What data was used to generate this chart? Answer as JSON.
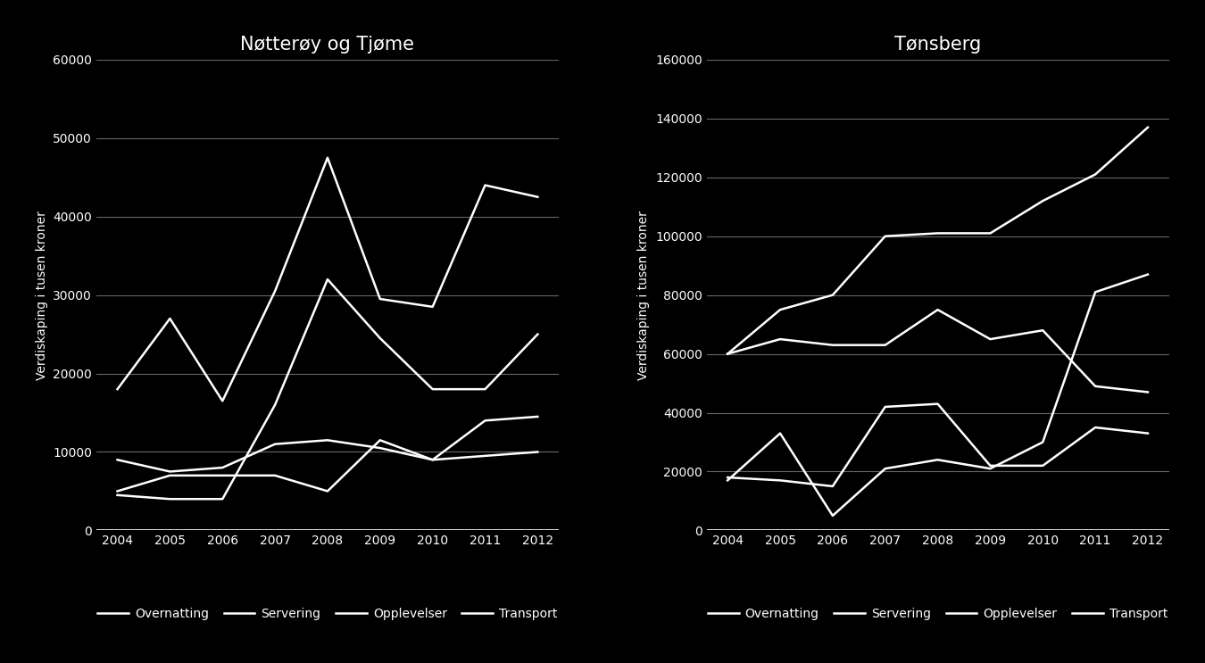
{
  "years": [
    2004,
    2005,
    2006,
    2007,
    2008,
    2009,
    2010,
    2011,
    2012
  ],
  "left": {
    "title": "Nøtterøy og Tjøme",
    "ylim": [
      0,
      60000
    ],
    "yticks": [
      0,
      10000,
      20000,
      30000,
      40000,
      50000,
      60000
    ],
    "series": {
      "Overnatting": [
        18000,
        27000,
        16500,
        30500,
        47500,
        29500,
        28500,
        44000,
        42500
      ],
      "Servering": [
        4500,
        4000,
        4000,
        16000,
        32000,
        24500,
        18000,
        18000,
        25000
      ],
      "Opplevelser": [
        5000,
        7000,
        7000,
        7000,
        5000,
        11500,
        9000,
        9500,
        10000
      ],
      "Transport": [
        9000,
        7500,
        8000,
        11000,
        11500,
        10500,
        9000,
        14000,
        14500
      ]
    }
  },
  "right": {
    "title": "Tønsberg",
    "ylim": [
      0,
      160000
    ],
    "yticks": [
      0,
      20000,
      40000,
      60000,
      80000,
      100000,
      120000,
      140000,
      160000
    ],
    "series": {
      "Overnatting": [
        60000,
        75000,
        80000,
        100000,
        101000,
        101000,
        112000,
        121000,
        137000
      ],
      "Servering": [
        60000,
        65000,
        63000,
        63000,
        75000,
        65000,
        68000,
        49000,
        47000
      ],
      "Opplevelser": [
        18000,
        17000,
        15000,
        42000,
        43000,
        22000,
        22000,
        35000,
        33000
      ],
      "Transport": [
        17000,
        33000,
        5000,
        21000,
        24000,
        21000,
        30000,
        81000,
        87000
      ]
    }
  },
  "legend_labels": [
    "Overnatting",
    "Servering",
    "Opplevelser",
    "Transport"
  ],
  "line_color": "#ffffff",
  "bg_color": "#000000",
  "text_color": "#ffffff",
  "ylabel": "Verdiskaping i tusen kroner",
  "title_fontsize": 15,
  "label_fontsize": 10,
  "tick_fontsize": 10,
  "legend_fontsize": 10,
  "linewidth": 1.8,
  "grid_color": "#666666"
}
